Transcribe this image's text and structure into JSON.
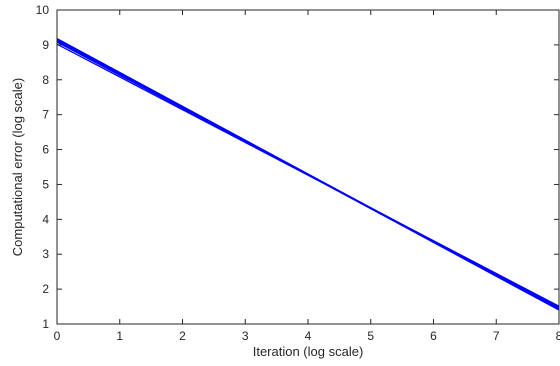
{
  "chart_data": {
    "type": "line",
    "xlabel": "Iteration (log scale)",
    "ylabel": "Computational error (log scale)",
    "xlim": [
      0,
      8
    ],
    "ylim": [
      1,
      10
    ],
    "x_ticks": [
      "0",
      "1",
      "2",
      "3",
      "4",
      "5",
      "6",
      "7",
      "8"
    ],
    "y_ticks": [
      "1",
      "2",
      "3",
      "4",
      "5",
      "6",
      "7",
      "8",
      "9",
      "10"
    ],
    "grid": false,
    "legend": "none",
    "series": [
      {
        "color": "#0000ff",
        "x": [
          0,
          8
        ],
        "y": [
          9.18,
          1.42
        ]
      },
      {
        "color": "#0000ff",
        "x": [
          0,
          8
        ],
        "y": [
          9.13,
          1.45
        ]
      },
      {
        "color": "#0000ff",
        "x": [
          0,
          8
        ],
        "y": [
          9.08,
          1.48
        ]
      },
      {
        "color": "#0000ff",
        "x": [
          0,
          8
        ],
        "y": [
          9.02,
          1.51
        ]
      },
      {
        "color": "#0000ff",
        "x": [
          0,
          8
        ],
        "y": [
          9.15,
          1.4
        ]
      },
      {
        "color": "#0000ff",
        "x": [
          0,
          8
        ],
        "y": [
          9.1,
          1.44
        ]
      }
    ]
  }
}
